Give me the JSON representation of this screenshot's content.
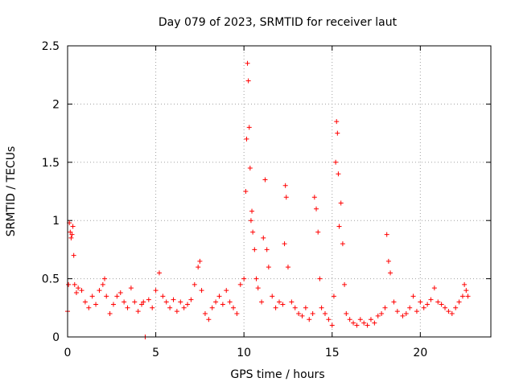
{
  "chart_data": {
    "type": "scatter",
    "title": "Day 079 of 2023, SRMTID for receiver laut",
    "xlabel": "GPS time / hours",
    "ylabel": "SRMTID / TECUs",
    "xlim": [
      0,
      24
    ],
    "ylim": [
      0,
      2.5
    ],
    "xticks": [
      0,
      5,
      10,
      15,
      20
    ],
    "xtick_labels": [
      "0",
      "5",
      "10",
      "15",
      "20"
    ],
    "yticks": [
      0,
      0.5,
      1,
      1.5,
      2,
      2.5
    ],
    "ytick_labels": [
      "0",
      "0.5",
      "1",
      "1.5",
      "2",
      "2.5"
    ],
    "grid": true,
    "marker": "plus",
    "series_color": "#ff0000",
    "series": [
      {
        "name": "SRMTID",
        "x": [
          0.0,
          0.05,
          0.1,
          0.15,
          0.2,
          0.25,
          0.3,
          0.35,
          0.4,
          0.5,
          0.6,
          0.8,
          1.0,
          1.2,
          1.4,
          1.6,
          1.8,
          2.0,
          2.1,
          2.2,
          2.4,
          2.6,
          2.8,
          3.0,
          3.2,
          3.4,
          3.6,
          3.8,
          4.0,
          4.2,
          4.3,
          4.4,
          4.6,
          4.8,
          5.0,
          5.2,
          5.4,
          5.6,
          5.8,
          6.0,
          6.2,
          6.4,
          6.6,
          6.8,
          7.0,
          7.2,
          7.4,
          7.5,
          7.6,
          7.8,
          8.0,
          8.2,
          8.4,
          8.6,
          8.8,
          9.0,
          9.2,
          9.4,
          9.6,
          9.8,
          10.0,
          10.1,
          10.15,
          10.2,
          10.25,
          10.3,
          10.35,
          10.4,
          10.45,
          10.5,
          10.6,
          10.7,
          10.8,
          11.0,
          11.1,
          11.2,
          11.3,
          11.4,
          11.6,
          11.8,
          12.0,
          12.2,
          12.3,
          12.35,
          12.4,
          12.5,
          12.7,
          12.9,
          13.1,
          13.3,
          13.5,
          13.7,
          13.9,
          14.0,
          14.1,
          14.2,
          14.3,
          14.4,
          14.6,
          14.8,
          15.0,
          15.1,
          15.2,
          15.25,
          15.3,
          15.35,
          15.4,
          15.5,
          15.6,
          15.7,
          15.8,
          16.0,
          16.2,
          16.4,
          16.6,
          16.8,
          17.0,
          17.2,
          17.4,
          17.6,
          17.8,
          18.0,
          18.1,
          18.2,
          18.3,
          18.5,
          18.7,
          19.0,
          19.2,
          19.4,
          19.6,
          19.8,
          20.0,
          20.2,
          20.4,
          20.6,
          20.8,
          21.0,
          21.2,
          21.4,
          21.6,
          21.8,
          22.0,
          22.2,
          22.4,
          22.5,
          22.6,
          22.7
        ],
        "y": [
          0.22,
          0.45,
          0.98,
          0.9,
          0.85,
          0.88,
          0.95,
          0.7,
          0.45,
          0.38,
          0.42,
          0.4,
          0.3,
          0.25,
          0.35,
          0.28,
          0.4,
          0.45,
          0.5,
          0.35,
          0.2,
          0.28,
          0.35,
          0.38,
          0.3,
          0.25,
          0.42,
          0.3,
          0.22,
          0.28,
          0.3,
          0.0,
          0.32,
          0.25,
          0.4,
          0.55,
          0.35,
          0.3,
          0.25,
          0.32,
          0.22,
          0.3,
          0.25,
          0.28,
          0.32,
          0.45,
          0.6,
          0.65,
          0.4,
          0.2,
          0.15,
          0.25,
          0.3,
          0.35,
          0.28,
          0.4,
          0.3,
          0.25,
          0.2,
          0.45,
          0.5,
          1.25,
          1.7,
          2.35,
          2.2,
          1.8,
          1.45,
          1.0,
          1.08,
          0.9,
          0.75,
          0.5,
          0.42,
          0.3,
          0.85,
          1.35,
          0.75,
          0.6,
          0.35,
          0.25,
          0.3,
          0.28,
          0.8,
          1.3,
          1.2,
          0.6,
          0.3,
          0.25,
          0.2,
          0.18,
          0.25,
          0.15,
          0.2,
          1.2,
          1.1,
          0.9,
          0.5,
          0.25,
          0.2,
          0.15,
          0.1,
          0.35,
          1.5,
          1.85,
          1.75,
          1.4,
          0.95,
          1.15,
          0.8,
          0.45,
          0.2,
          0.15,
          0.12,
          0.1,
          0.15,
          0.12,
          0.1,
          0.15,
          0.12,
          0.18,
          0.2,
          0.25,
          0.88,
          0.65,
          0.55,
          0.3,
          0.22,
          0.18,
          0.2,
          0.25,
          0.35,
          0.22,
          0.3,
          0.25,
          0.28,
          0.32,
          0.42,
          0.3,
          0.28,
          0.25,
          0.22,
          0.2,
          0.25,
          0.3,
          0.35,
          0.45,
          0.4,
          0.35
        ]
      }
    ]
  }
}
